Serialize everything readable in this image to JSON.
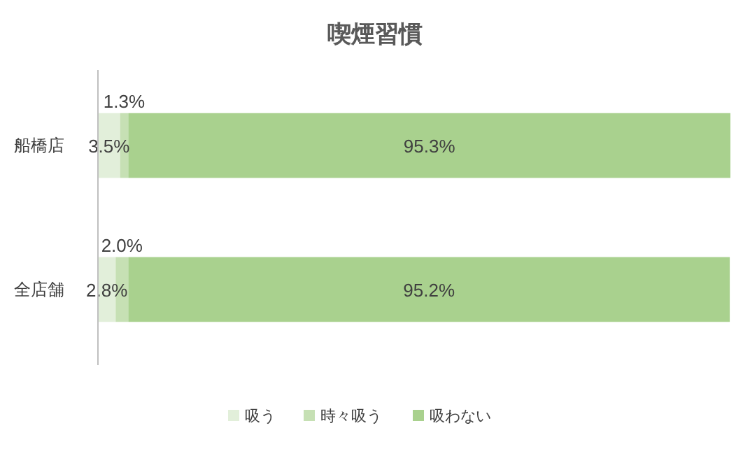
{
  "chart_data": {
    "type": "bar",
    "title": "喫煙習慣",
    "orientation": "horizontal",
    "stacked": true,
    "categories": [
      "船橋店",
      "全店舗"
    ],
    "series": [
      {
        "name": "吸う",
        "color": "#e2efda",
        "values": [
          3.5,
          2.8
        ],
        "value_labels": [
          "3.5%",
          "2.8%"
        ]
      },
      {
        "name": "時々吸う",
        "color": "#c6e0b4",
        "values": [
          1.3,
          2.0
        ],
        "value_labels": [
          "1.3%",
          "2.0%"
        ]
      },
      {
        "name": "吸わない",
        "color": "#a9d18e",
        "values": [
          95.3,
          95.2
        ],
        "value_labels": [
          "95.3%",
          "95.2%"
        ]
      }
    ],
    "legend": "bottom"
  }
}
